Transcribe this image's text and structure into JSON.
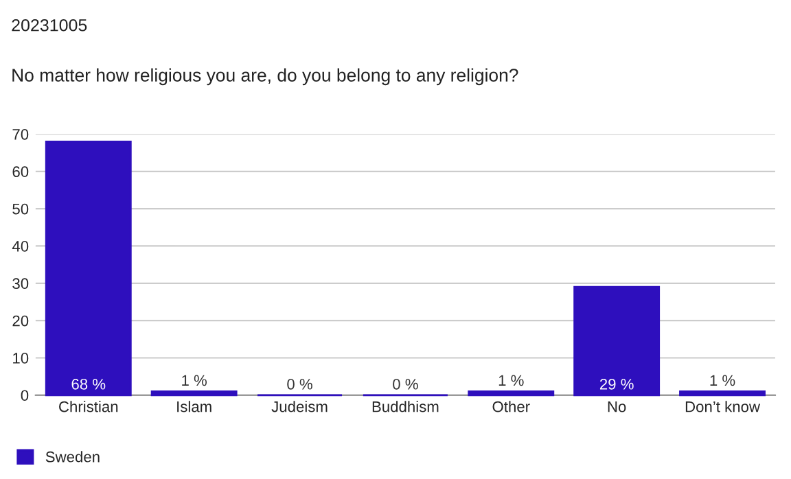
{
  "chart_data": {
    "type": "bar",
    "title": "No matter how religious you are, do you belong to any religion?",
    "annotations": [
      "20231005"
    ],
    "categories": [
      "Christian",
      "Islam",
      "Judeism",
      "Buddhism",
      "Other",
      "No",
      "Don’t know"
    ],
    "series": [
      {
        "name": "Sweden",
        "color": "#2e0fbd",
        "values": [
          68,
          1,
          0,
          0,
          1,
          29,
          1
        ],
        "value_labels": [
          "68 %",
          "1 %",
          "0 %",
          "0 %",
          "1 %",
          "29 %",
          "1 %"
        ]
      }
    ],
    "ylim": [
      0,
      70
    ],
    "yticks": [
      0,
      10,
      20,
      30,
      40,
      50,
      60,
      70
    ],
    "grid": "y",
    "legend": "bottom left"
  }
}
